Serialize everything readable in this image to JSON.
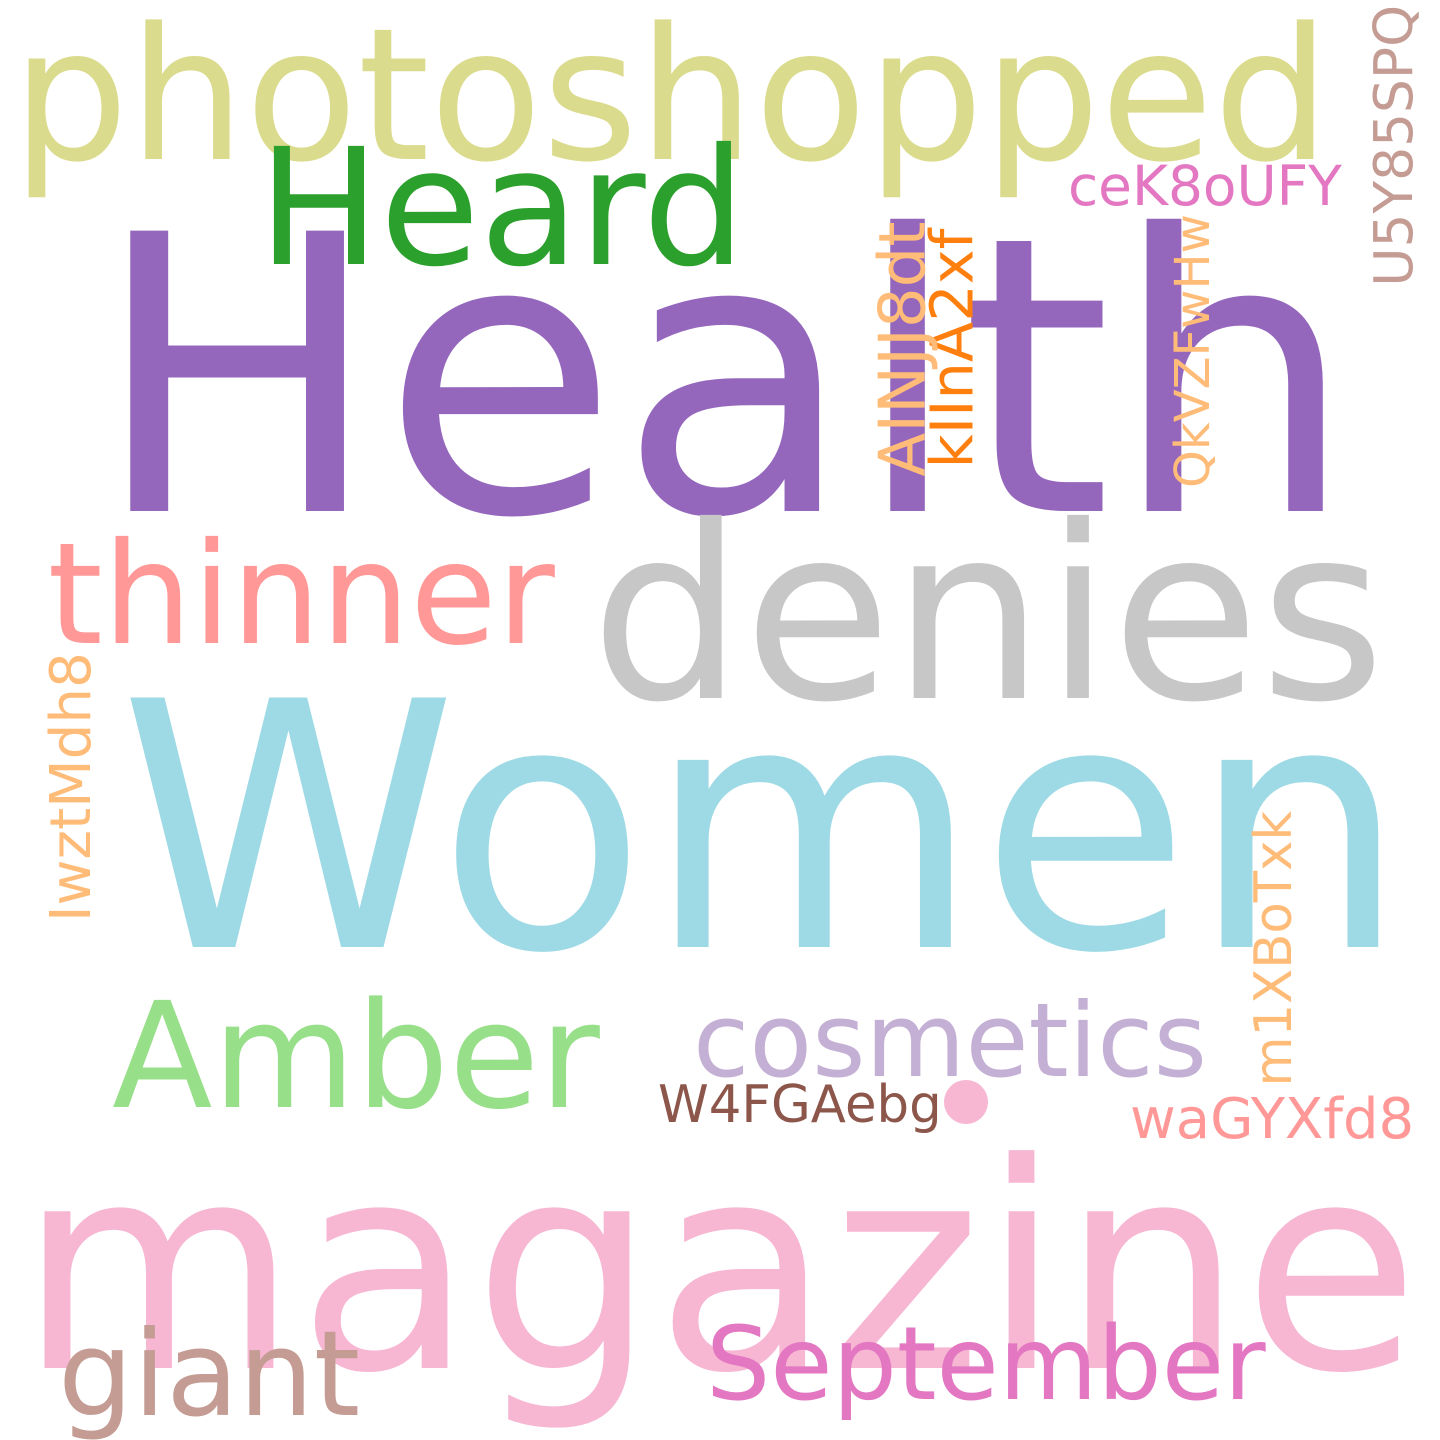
{
  "wordcloud": {
    "background": "#ffffff",
    "words": [
      {
        "key": "health",
        "text": "Health",
        "color": "#9467bd"
      },
      {
        "key": "women",
        "text": "Women",
        "color": "#9edae5"
      },
      {
        "key": "magazine",
        "text": "magazine",
        "color": "#f7b6d2"
      },
      {
        "key": "photoshopped",
        "text": "photoshopped",
        "color": "#dbdb8d"
      },
      {
        "key": "denies",
        "text": "denies",
        "color": "#c7c7c7"
      },
      {
        "key": "heard",
        "text": "Heard",
        "color": "#2ca02c"
      },
      {
        "key": "thinner",
        "text": "thinner",
        "color": "#ff9896"
      },
      {
        "key": "amber",
        "text": "Amber",
        "color": "#98df8a"
      },
      {
        "key": "cosmetics",
        "text": "cosmetics",
        "color": "#c5b0d5"
      },
      {
        "key": "september",
        "text": "September",
        "color": "#e377c2"
      },
      {
        "key": "giant",
        "text": "giant",
        "color": "#c49c94"
      },
      {
        "key": "w4fgaebg",
        "text": "W4FGAebg",
        "color": "#8c564b"
      },
      {
        "key": "wagyxfd8",
        "text": "waGYXfd8",
        "color": "#ff9896"
      },
      {
        "key": "cek8oufy",
        "text": "ceK8oUFY",
        "color": "#e377c2"
      },
      {
        "key": "u5y85spq",
        "text": "U5Y85SPQ",
        "color": "#c49c94"
      },
      {
        "key": "qkvzfwhw",
        "text": "QkVZFwHw",
        "color": "#ffbb78"
      },
      {
        "key": "kiina2xf",
        "text": "kIInA2xf",
        "color": "#ff7f0e"
      },
      {
        "key": "ainjj8dt",
        "text": "AINJJ8dt",
        "color": "#ffbb78"
      },
      {
        "key": "iwztmdh8",
        "text": "IwztMdh8",
        "color": "#ffbb78"
      },
      {
        "key": "m1xbotxk",
        "text": "m1XBoTxk",
        "color": "#ffbb78"
      },
      {
        "key": "dot",
        "text": ".",
        "color": "#f7b6d2"
      }
    ]
  }
}
